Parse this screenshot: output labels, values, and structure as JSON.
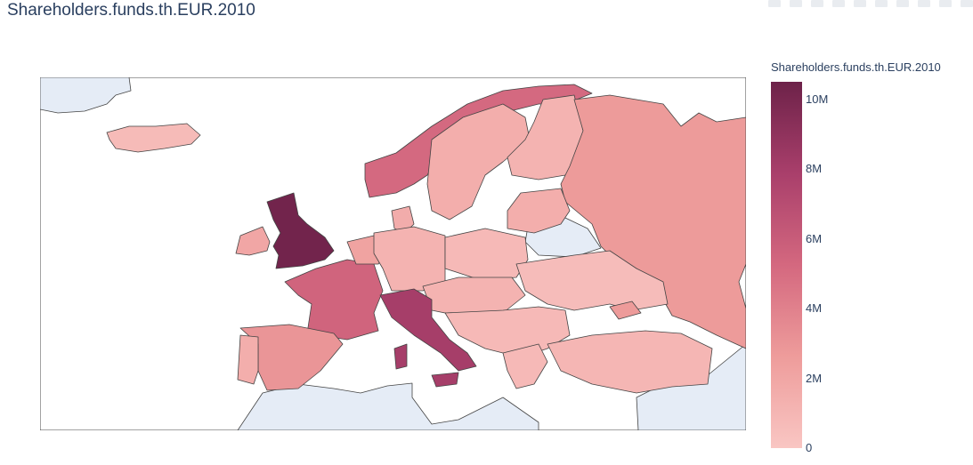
{
  "title": "Shareholders.funds.th.EUR.2010",
  "colorbar": {
    "title": "Shareholders.funds.th.EUR.2010",
    "tick_labels": [
      "10M",
      "8M",
      "6M",
      "4M",
      "2M",
      "0"
    ],
    "colors": [
      "#f9c6c3",
      "#ee9c9b",
      "#d4687f",
      "#a93f6b",
      "#6d2249"
    ]
  },
  "modebar": {
    "icons": [
      "camera-icon",
      "zoom-icon",
      "pan-icon",
      "select-icon",
      "lasso-icon",
      "zoom-in-icon",
      "zoom-out-icon",
      "reset-icon",
      "home-icon",
      "plotly-logo-icon"
    ]
  },
  "chart_data": {
    "type": "choropleth",
    "title": "Shareholders.funds.th.EUR.2010",
    "colorscale_range": [
      0,
      10500000
    ],
    "colorbar_ticks": [
      0,
      2000000,
      4000000,
      6000000,
      8000000,
      10000000
    ],
    "values": [
      {
        "region": "United Kingdom",
        "value": 10300000
      },
      {
        "region": "Italy",
        "value": 8000000
      },
      {
        "region": "France",
        "value": 5500000
      },
      {
        "region": "Norway",
        "value": 5200000
      },
      {
        "region": "Spain",
        "value": 3000000
      },
      {
        "region": "Russia",
        "value": 2700000
      },
      {
        "region": "Sweden",
        "value": 1500000
      },
      {
        "region": "Finland",
        "value": 1200000
      },
      {
        "region": "Ireland",
        "value": 2000000
      },
      {
        "region": "Netherlands",
        "value": 2200000
      },
      {
        "region": "Germany",
        "value": 1200000
      },
      {
        "region": "Poland",
        "value": 800000
      },
      {
        "region": "Ukraine",
        "value": 600000
      },
      {
        "region": "Turkey",
        "value": 1000000
      },
      {
        "region": "Iceland",
        "value": 700000
      },
      {
        "region": "Portugal",
        "value": 1500000
      },
      {
        "region": "Belgium",
        "value": 1600000
      }
    ]
  }
}
